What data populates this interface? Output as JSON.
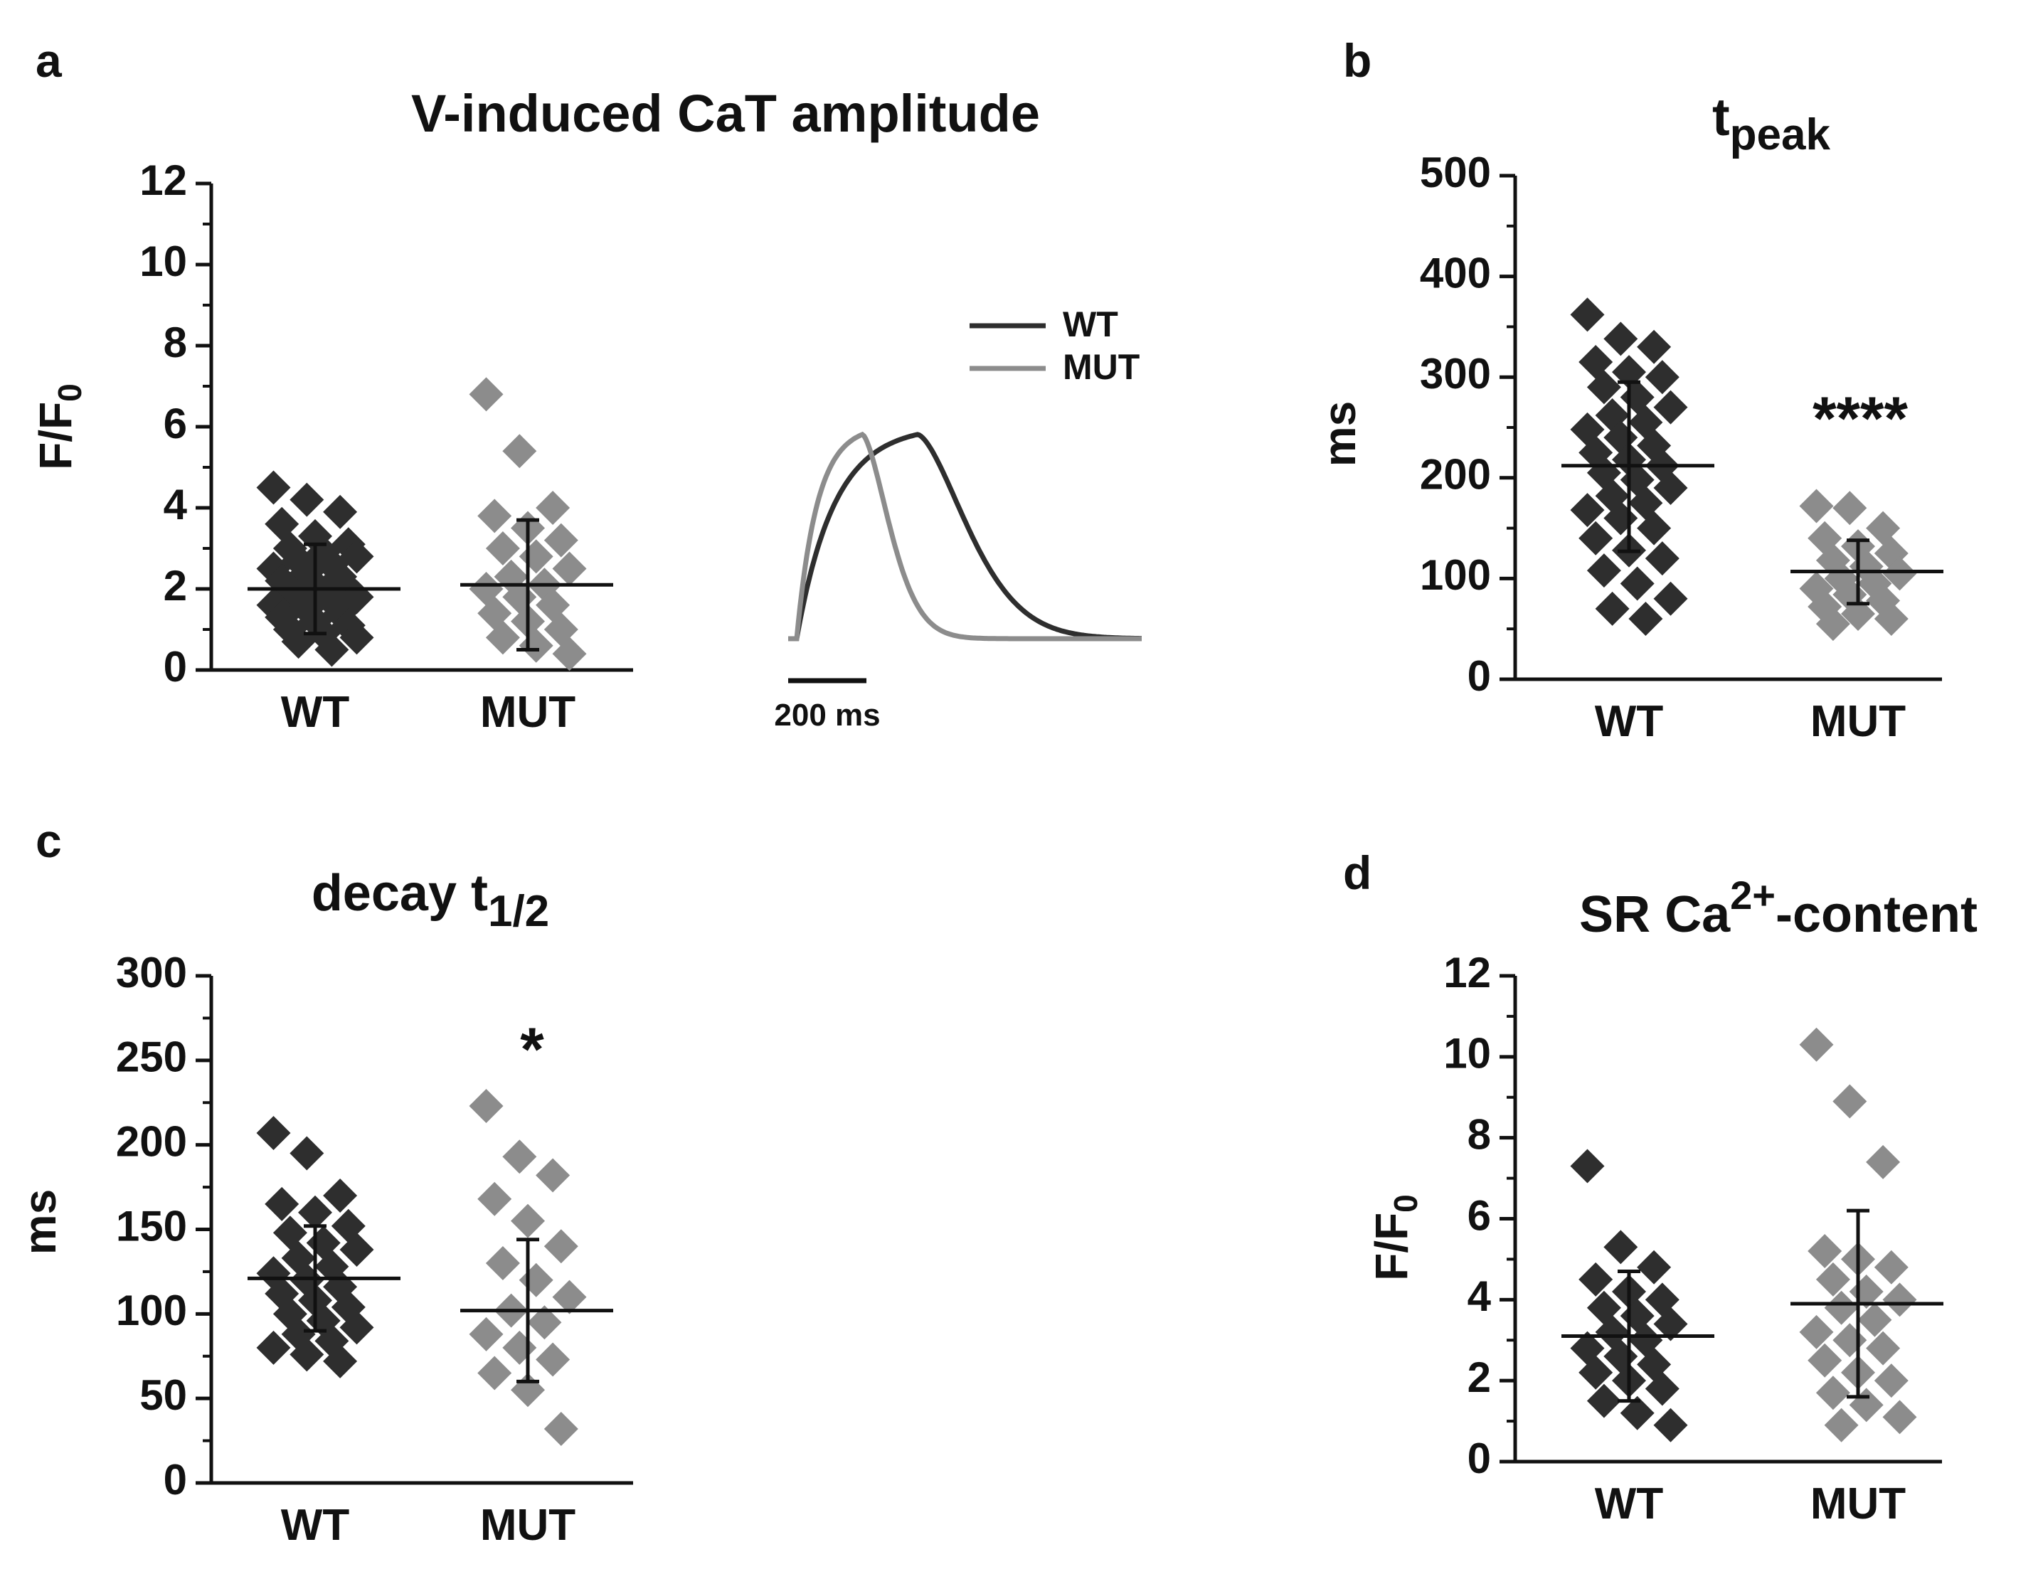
{
  "colors": {
    "wt": "#2e2e2e",
    "mut": "#8c8c8c",
    "axis": "#111111"
  },
  "panels": [
    {
      "letter": "a",
      "title_main": "V-induced CaT amplitude",
      "title_sub": "",
      "title_sup": "",
      "title_tail": "",
      "ylabel_main": "F/F",
      "ylabel_sub": "0",
      "significance": "",
      "legend_wt": "WT",
      "legend_mut": "MUT",
      "scalebar": "200 ms"
    },
    {
      "letter": "b",
      "title_main": "t",
      "title_sub": "peak",
      "title_sup": "",
      "title_tail": "",
      "ylabel_main": "ms",
      "ylabel_sub": "",
      "significance": "****"
    },
    {
      "letter": "c",
      "title_main": "decay t",
      "title_sub": "1/2",
      "title_sup": "",
      "title_tail": "",
      "ylabel_main": "ms",
      "ylabel_sub": "",
      "significance": "*"
    },
    {
      "letter": "d",
      "title_main": "SR Ca",
      "title_sub": "",
      "title_sup": "2+",
      "title_tail": "-content",
      "ylabel_main": "F/F",
      "ylabel_sub": "0",
      "significance": ""
    }
  ],
  "chart_data": [
    {
      "type": "scatter",
      "panel": "a",
      "title": "V-induced CaT amplitude",
      "ylabel": "F/F0",
      "categories": [
        "WT",
        "MUT"
      ],
      "ylim": [
        0,
        12
      ],
      "yticks": [
        "0",
        "2",
        "4",
        "6",
        "8",
        "10",
        "12"
      ],
      "series": [
        {
          "name": "WT",
          "mean": 2.0,
          "sd_low": 0.9,
          "sd_high": 3.1,
          "values": [
            4.5,
            4.2,
            3.9,
            3.6,
            3.3,
            3.1,
            3.0,
            2.9,
            2.8,
            2.7,
            2.6,
            2.5,
            2.4,
            2.3,
            2.2,
            2.1,
            2.0,
            2.0,
            1.9,
            1.8,
            1.7,
            1.7,
            1.6,
            1.5,
            1.4,
            1.3,
            1.2,
            1.1,
            1.0,
            0.9,
            0.8,
            0.7,
            0.5
          ]
        },
        {
          "name": "MUT",
          "mean": 2.1,
          "sd_low": 0.5,
          "sd_high": 3.7,
          "values": [
            6.8,
            5.4,
            4.0,
            3.8,
            3.5,
            3.2,
            3.0,
            2.8,
            2.5,
            2.3,
            2.1,
            2.0,
            1.8,
            1.6,
            1.4,
            1.2,
            1.0,
            0.8,
            0.6,
            0.4
          ]
        }
      ]
    },
    {
      "type": "scatter",
      "panel": "b",
      "title": "tpeak",
      "ylabel": "ms",
      "categories": [
        "WT",
        "MUT"
      ],
      "ylim": [
        0,
        500
      ],
      "yticks": [
        "0",
        "100",
        "200",
        "300",
        "400",
        "500"
      ],
      "series": [
        {
          "name": "WT",
          "mean": 212,
          "sd_low": 127,
          "sd_high": 295,
          "values": [
            362,
            338,
            330,
            315,
            305,
            300,
            290,
            280,
            270,
            262,
            255,
            248,
            240,
            232,
            225,
            218,
            212,
            205,
            198,
            190,
            182,
            175,
            168,
            160,
            150,
            140,
            128,
            120,
            108,
            95,
            80,
            70,
            60
          ]
        },
        {
          "name": "MUT",
          "mean": 107,
          "sd_low": 75,
          "sd_high": 138,
          "values": [
            172,
            170,
            150,
            140,
            132,
            125,
            118,
            112,
            105,
            100,
            95,
            90,
            84,
            78,
            72,
            65,
            60,
            55
          ]
        }
      ]
    },
    {
      "type": "scatter",
      "panel": "c",
      "title": "decay t1/2",
      "ylabel": "ms",
      "categories": [
        "WT",
        "MUT"
      ],
      "ylim": [
        0,
        300
      ],
      "yticks": [
        "0",
        "50",
        "100",
        "150",
        "200",
        "250",
        "300"
      ],
      "series": [
        {
          "name": "WT",
          "mean": 121,
          "sd_low": 90,
          "sd_high": 152,
          "values": [
            207,
            195,
            170,
            165,
            160,
            152,
            148,
            142,
            138,
            133,
            128,
            124,
            120,
            116,
            112,
            108,
            104,
            100,
            96,
            92,
            88,
            84,
            80,
            76,
            72
          ]
        },
        {
          "name": "MUT",
          "mean": 102,
          "sd_low": 60,
          "sd_high": 144,
          "values": [
            223,
            193,
            182,
            168,
            155,
            140,
            130,
            120,
            110,
            102,
            95,
            88,
            80,
            73,
            65,
            55,
            32
          ]
        }
      ]
    },
    {
      "type": "scatter",
      "panel": "d",
      "title": "SR Ca2+-content",
      "ylabel": "F/F0",
      "categories": [
        "WT",
        "MUT"
      ],
      "ylim": [
        0,
        12
      ],
      "yticks": [
        "0",
        "2",
        "4",
        "6",
        "8",
        "10",
        "12"
      ],
      "series": [
        {
          "name": "WT",
          "mean": 3.1,
          "sd_low": 1.5,
          "sd_high": 4.7,
          "values": [
            7.3,
            5.3,
            4.8,
            4.5,
            4.2,
            4.0,
            3.8,
            3.6,
            3.4,
            3.2,
            3.0,
            2.8,
            2.6,
            2.4,
            2.2,
            2.0,
            1.8,
            1.5,
            1.2,
            0.9
          ]
        },
        {
          "name": "MUT",
          "mean": 3.9,
          "sd_low": 1.6,
          "sd_high": 6.2,
          "values": [
            10.3,
            8.9,
            7.4,
            5.2,
            5.0,
            4.8,
            4.5,
            4.2,
            4.0,
            3.8,
            3.5,
            3.2,
            3.0,
            2.8,
            2.5,
            2.2,
            2.0,
            1.7,
            1.4,
            1.1,
            0.9
          ]
        }
      ]
    }
  ],
  "traces": {
    "time_ms": 500,
    "wt": {
      "rise_ms": 175,
      "decay_ms": 100
    },
    "mut": {
      "rise_ms": 95,
      "decay_ms": 55
    }
  }
}
